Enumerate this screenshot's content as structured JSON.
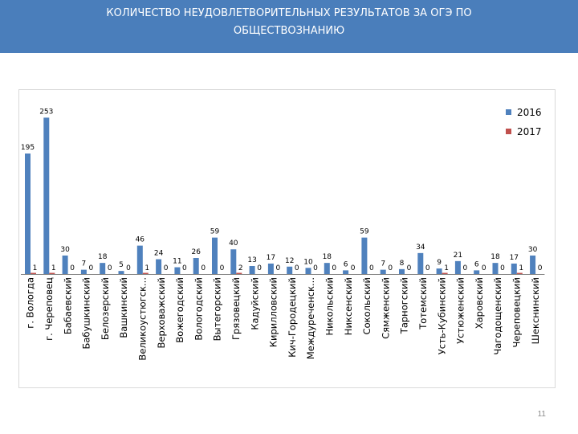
{
  "slide": {
    "title_line1": "КОЛИЧЕСТВО  НЕУДОВЛЕТВОРИТЕЛЬНЫХ РЕЗУЛЬТАТОВ ЗА ОГЭ  ПО",
    "title_line2": "ОБЩЕСТВОЗНАНИЮ",
    "page_number": "11"
  },
  "chart_data": {
    "type": "bar",
    "title": "",
    "xlabel": "",
    "ylabel": "",
    "ylim": [
      0,
      260
    ],
    "grid": false,
    "legend_position": "right",
    "categories": [
      "г. Вологда",
      "г. Череповец",
      "Бабаевский",
      "Бабушкинский",
      "Белозерский",
      "Вашкинский",
      "Великоустюгск...",
      "Верховажский",
      "Вожегодский",
      "Вологодский",
      "Вытегорский",
      "Грязовецкий",
      "Кадуйский",
      "Кирилловский",
      "Кич-Городецкий",
      "Междуреченск...",
      "Никольский",
      "Никсенский",
      "Сокольский",
      "Сямженский",
      "Тарногский",
      "Тотемский",
      "Усть-Кубинский",
      "Устюженский",
      "Харовский",
      "Чагодощенский",
      "Череповецкий",
      "Шекснинский"
    ],
    "series": [
      {
        "name": "2016",
        "color": "#4f81bd",
        "values": [
          195,
          253,
          30,
          7,
          18,
          5,
          46,
          24,
          11,
          26,
          59,
          40,
          13,
          17,
          12,
          10,
          18,
          6,
          59,
          7,
          8,
          34,
          9,
          21,
          6,
          18,
          17,
          30
        ]
      },
      {
        "name": "2017",
        "color": "#c0504d",
        "values": [
          1,
          1,
          0,
          0,
          0,
          0,
          1,
          0,
          0,
          0,
          0,
          2,
          0,
          0,
          0,
          0,
          0,
          0,
          0,
          0,
          0,
          0,
          1,
          0,
          0,
          0,
          1,
          0
        ]
      }
    ]
  }
}
